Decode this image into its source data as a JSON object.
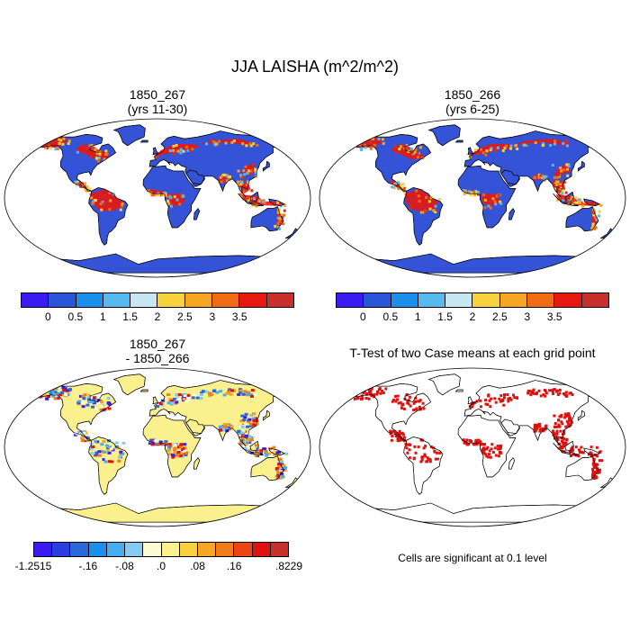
{
  "main_title": "JJA LAISHA (m^2/m^2)",
  "panels": [
    {
      "id": "p1",
      "title1": "1850_267",
      "title2": "(yrs 11-30)",
      "kind": "field"
    },
    {
      "id": "p2",
      "title1": "1850_266",
      "title2": "(yrs 6-25)",
      "kind": "field"
    },
    {
      "id": "p3",
      "title1": "1850_267",
      "title2": "- 1850_266",
      "kind": "diff"
    },
    {
      "id": "p4",
      "title1": "T-Test of two Case means at each grid point",
      "title2": "",
      "kind": "ttest"
    }
  ],
  "colorbar_field": {
    "colors": [
      "#3a1cf2",
      "#2b55d8",
      "#1b8fec",
      "#56baf0",
      "#c7e8f3",
      "#f8d23c",
      "#f5a623",
      "#f06c14",
      "#e8170f",
      "#c9302c"
    ],
    "labels": [
      "0",
      "0.5",
      "1",
      "1.5",
      "2",
      "2.5",
      "3",
      "3.5"
    ]
  },
  "colorbar_diff": {
    "colors": [
      "#3a1cf2",
      "#2b3ee0",
      "#2b68d8",
      "#1b8fec",
      "#46aef0",
      "#83cbf3",
      "#fdfbd2",
      "#fbf08e",
      "#f8d23c",
      "#f5a623",
      "#f07d19",
      "#ec4616",
      "#e0110e",
      "#c9302c"
    ],
    "labels": [
      "-1.2515",
      "-.16",
      "-.08",
      ".0",
      ".08",
      ".16",
      ".8229"
    ]
  },
  "note_text": "Cells are significant at 0.1 level",
  "colors": {
    "land_low": "#3553d6",
    "high": "#e8170f",
    "diff_bg": "#fbf08e",
    "sig": "#e0110e"
  }
}
